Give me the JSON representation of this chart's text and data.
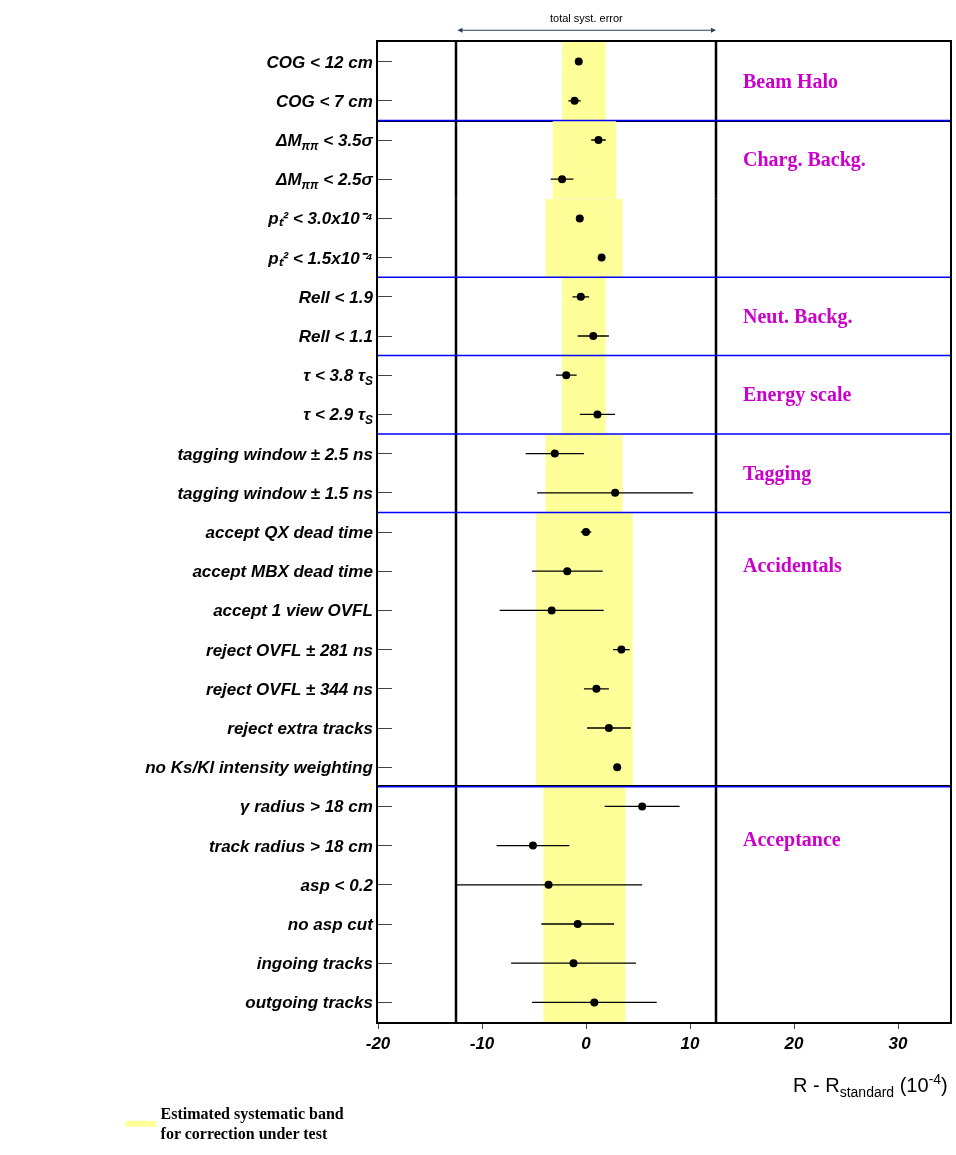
{
  "chart_data": [
    {
      "type": "scatter",
      "orientation": "horizontal",
      "title": "total syst. error",
      "categories": [
        "COG < 12 cm",
        "COG < 7 cm"
      ],
      "series": [
        {
          "color": "#000000",
          "values": [
            -0.7,
            -1.1
          ],
          "errors": [
            0.3,
            0.6
          ]
        }
      ],
      "marker": "circle",
      "xlim": [
        -20,
        35
      ],
      "xticks": [
        -20,
        -10,
        0,
        10,
        20,
        30
      ],
      "tick_labels": "y",
      "grid": false,
      "ref_lines": [
        {
          "axis": "x",
          "value": -12.5,
          "color": "#000000"
        },
        {
          "axis": "x",
          "value": 12.5,
          "color": "#000000"
        }
      ],
      "bands": [
        {
          "axis": "x",
          "from": -2.3,
          "to": 1.9,
          "color": "#ffff99"
        }
      ],
      "annotations": [
        "Beam Halo"
      ]
    },
    {
      "type": "scatter",
      "orientation": "horizontal",
      "categories": [
        "ΔM$_{ππ}$ < 3.5σ",
        "ΔM$_{ππ}$ < 2.5σ"
      ],
      "series": [
        {
          "color": "#000000",
          "values": [
            1.2,
            -2.3
          ],
          "errors": [
            0.7,
            1.1
          ]
        }
      ],
      "marker": "circle",
      "xlim": [
        -20,
        35
      ],
      "xticks": [
        -20,
        -10,
        0,
        10,
        20,
        30
      ],
      "tick_labels": "y",
      "grid": false,
      "ref_lines": [
        {
          "axis": "x",
          "value": -12.5,
          "color": "#000000"
        },
        {
          "axis": "x",
          "value": 12.5,
          "color": "#000000"
        }
      ],
      "bands": [
        {
          "axis": "x",
          "from": -3.2,
          "to": 2.9,
          "color": "#ffff99"
        }
      ],
      "annotations": [
        "Charg. Backg."
      ]
    },
    {
      "type": "scatter",
      "orientation": "horizontal",
      "categories": [
        "pₜ² < 3.0x10⁻⁴",
        "pₜ² < 1.5x10⁻⁴"
      ],
      "series": [
        {
          "color": "#000000",
          "values": [
            -0.6,
            1.5
          ],
          "errors": [
            0.3,
            0.3
          ]
        }
      ],
      "marker": "circle",
      "xlim": [
        -20,
        35
      ],
      "xticks": [
        -20,
        -10,
        0,
        10,
        20,
        30
      ],
      "tick_labels": "y",
      "grid": false,
      "ref_lines": [
        {
          "axis": "x",
          "value": -12.5,
          "color": "#000000"
        },
        {
          "axis": "x",
          "value": 12.5,
          "color": "#000000"
        }
      ],
      "bands": [
        {
          "axis": "x",
          "from": -3.9,
          "to": 3.5,
          "color": "#ffff99"
        }
      ]
    },
    {
      "type": "scatter",
      "orientation": "horizontal",
      "categories": [
        "Rell < 1.9",
        "Rell < 1.1"
      ],
      "series": [
        {
          "color": "#000000",
          "values": [
            -0.5,
            0.7
          ],
          "errors": [
            0.8,
            1.5
          ]
        }
      ],
      "marker": "circle",
      "xlim": [
        -20,
        35
      ],
      "xticks": [
        -20,
        -10,
        0,
        10,
        20,
        30
      ],
      "tick_labels": "y",
      "grid": false,
      "ref_lines": [
        {
          "axis": "x",
          "value": -12.5,
          "color": "#000000"
        },
        {
          "axis": "x",
          "value": 12.5,
          "color": "#000000"
        }
      ],
      "bands": [
        {
          "axis": "x",
          "from": -2.3,
          "to": 1.9,
          "color": "#ffff99"
        }
      ],
      "annotations": [
        "Neut. Backg."
      ]
    },
    {
      "type": "scatter",
      "orientation": "horizontal",
      "categories": [
        "τ < 3.8 τ$_{S}$",
        "τ < 2.9 τ$_{S}$"
      ],
      "series": [
        {
          "color": "#000000",
          "values": [
            -1.9,
            1.1
          ],
          "errors": [
            1.0,
            1.7
          ]
        }
      ],
      "marker": "circle",
      "xlim": [
        -20,
        35
      ],
      "xticks": [
        -20,
        -10,
        0,
        10,
        20,
        30
      ],
      "tick_labels": "y",
      "grid": false,
      "ref_lines": [
        {
          "axis": "x",
          "value": -12.5,
          "color": "#000000"
        },
        {
          "axis": "x",
          "value": 12.5,
          "color": "#000000"
        }
      ],
      "bands": [
        {
          "axis": "x",
          "from": -2.3,
          "to": 1.9,
          "color": "#ffff99"
        }
      ],
      "annotations": [
        "Energy scale"
      ]
    },
    {
      "type": "scatter",
      "orientation": "horizontal",
      "categories": [
        "tagging window ± 2.5 ns",
        "tagging window ± 1.5 ns"
      ],
      "series": [
        {
          "color": "#000000",
          "values": [
            -3.0,
            2.8
          ],
          "errors": [
            2.8,
            7.5
          ]
        }
      ],
      "marker": "circle",
      "xlim": [
        -20,
        35
      ],
      "xticks": [
        -20,
        -10,
        0,
        10,
        20,
        30
      ],
      "tick_labels": "y",
      "grid": false,
      "ref_lines": [
        {
          "axis": "x",
          "value": -12.5,
          "color": "#000000"
        },
        {
          "axis": "x",
          "value": 12.5,
          "color": "#000000"
        }
      ],
      "bands": [
        {
          "axis": "x",
          "from": -3.9,
          "to": 3.5,
          "color": "#ffff99"
        }
      ],
      "annotations": [
        "Tagging"
      ]
    },
    {
      "type": "scatter",
      "orientation": "horizontal",
      "categories": [
        "accept QX dead time",
        "accept MBX dead time",
        "accept 1 view OVFL",
        "reject OVFL ± 281 ns",
        "reject OVFL ± 344 ns",
        "reject extra tracks",
        "no Ks/Kl intensity weighting"
      ],
      "series": [
        {
          "color": "#000000",
          "values": [
            0.0,
            -1.8,
            -3.3,
            3.4,
            1.0,
            2.2,
            3.0
          ],
          "errors": [
            0.5,
            3.4,
            5.0,
            0.8,
            1.2,
            2.1,
            0.3
          ]
        }
      ],
      "marker": "circle",
      "xlim": [
        -20,
        35
      ],
      "xticks": [
        -20,
        -10,
        0,
        10,
        20,
        30
      ],
      "tick_labels": "y",
      "grid": false,
      "ref_lines": [
        {
          "axis": "x",
          "value": -12.5,
          "color": "#000000"
        },
        {
          "axis": "x",
          "value": 12.5,
          "color": "#000000"
        }
      ],
      "bands": [
        {
          "axis": "x",
          "from": -4.8,
          "to": 4.5,
          "color": "#ffff99"
        }
      ],
      "annotations": [
        "Accidentals"
      ]
    },
    {
      "type": "scatter",
      "orientation": "horizontal",
      "categories": [
        "γ radius > 18 cm",
        "track radius > 18 cm",
        "asp < 0.2",
        "no asp cut",
        "ingoing tracks",
        "outgoing tracks"
      ],
      "series": [
        {
          "color": "#000000",
          "values": [
            5.4,
            -5.1,
            -3.6,
            -0.8,
            -1.2,
            0.8
          ],
          "errors": [
            3.6,
            3.5,
            9.0,
            3.5,
            6.0,
            6.0
          ]
        }
      ],
      "marker": "circle",
      "xlim": [
        -20,
        35
      ],
      "xticks": [
        -20,
        -10,
        0,
        10,
        20,
        30
      ],
      "grid": false,
      "xlabel": "R - R$_{standard}$ (10$^{-4}$)",
      "legend": "bottom left",
      "ref_lines": [
        {
          "axis": "x",
          "value": -12.5,
          "color": "#000000"
        },
        {
          "axis": "x",
          "value": 12.5,
          "color": "#000000"
        }
      ],
      "bands": [
        {
          "axis": "x",
          "from": -4.1,
          "to": 3.8,
          "color": "#ffff99",
          "label": "Estimated systematic band\nfor correction under test"
        }
      ],
      "annotations": [
        "Acceptance"
      ]
    }
  ]
}
